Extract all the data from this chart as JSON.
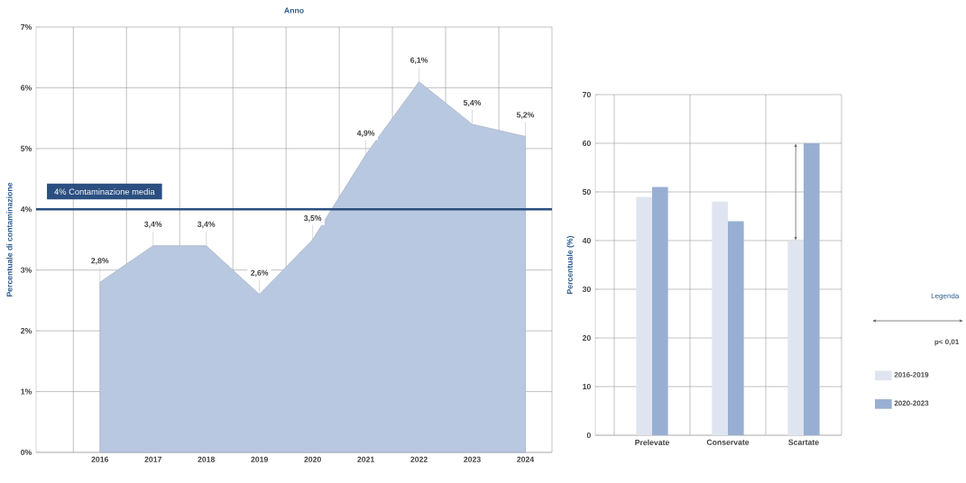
{
  "chart_data": [
    {
      "type": "area",
      "xlabel": "Anno",
      "ylabel": "Percentuale di contaminazione",
      "categories": [
        "2016",
        "2017",
        "2018",
        "2019",
        "2020",
        "2021",
        "2022",
        "2023",
        "2024"
      ],
      "values": [
        2.8,
        3.4,
        3.4,
        2.6,
        3.5,
        4.9,
        6.1,
        5.4,
        5.2
      ],
      "value_labels": [
        "2,8%",
        "3,4%",
        "3,4%",
        "2,6%",
        "3,5%",
        "4,9%",
        "6,1%",
        "5,4%",
        "5,2%"
      ],
      "color": "#b8c8e0",
      "ylim": [
        0,
        7
      ],
      "yticks": [
        {
          "value": 0,
          "label": "0%"
        },
        {
          "value": 1,
          "label": "1%"
        },
        {
          "value": 2,
          "label": "2%"
        },
        {
          "value": 3,
          "label": "3%"
        },
        {
          "value": 4,
          "label": "4%"
        },
        {
          "value": 5,
          "label": "5%"
        },
        {
          "value": 6,
          "label": "6%"
        },
        {
          "value": 7,
          "label": "7%"
        }
      ],
      "grid": true,
      "ref_lines": [
        {
          "axis": "y",
          "value": 4,
          "label": "4%  Contaminazione media",
          "color": "#2b4f80"
        }
      ]
    },
    {
      "type": "bar",
      "ylabel": "Percentuale (%)",
      "categories": [
        "Prelevate",
        "Conservate",
        "Scartate"
      ],
      "series": [
        {
          "name": "2016-2019",
          "color": "#dfe5f0",
          "values": [
            49,
            48,
            40
          ]
        },
        {
          "name": "2020-2023",
          "color": "#98afd3",
          "values": [
            51,
            44,
            60
          ]
        }
      ],
      "ylim": [
        0,
        70
      ],
      "yticks": [
        0,
        10,
        20,
        30,
        40,
        50,
        60,
        70
      ],
      "grid": true,
      "legend": "right",
      "legend_title": "Legenda",
      "annotations": [
        "p< 0,01"
      ]
    }
  ]
}
